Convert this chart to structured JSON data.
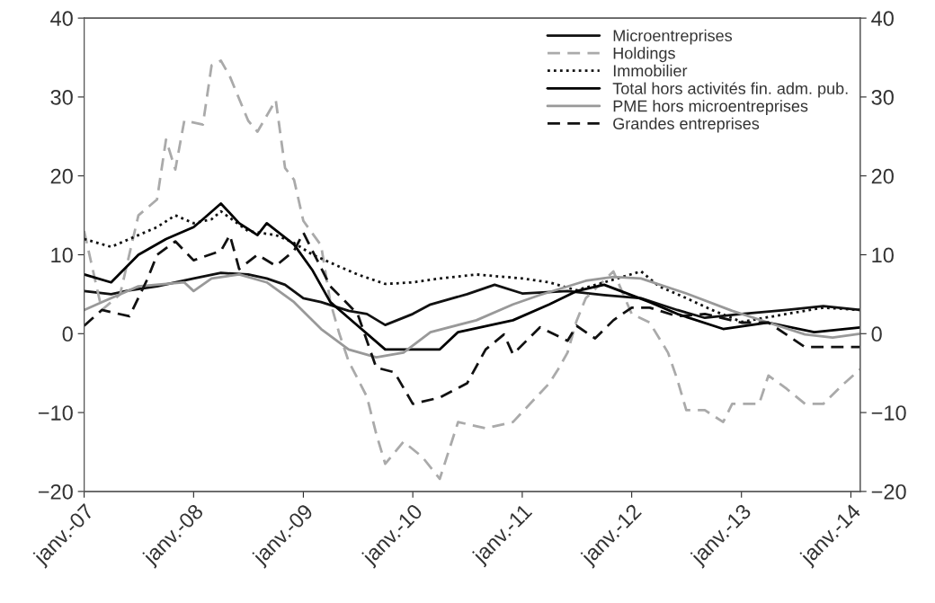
{
  "chart_data": {
    "type": "line",
    "ylim": [
      -20,
      40
    ],
    "yticks": [
      {
        "value": -20,
        "label": "−20"
      },
      {
        "value": -10,
        "label": "−10"
      },
      0,
      10,
      20,
      30,
      40
    ],
    "y2lim": [
      -20,
      40
    ],
    "y2ticks": [
      {
        "value": -20,
        "label": "−20"
      },
      {
        "value": -10,
        "label": "−10"
      },
      0,
      10,
      20,
      30,
      40
    ],
    "xlim": [
      "2007-01",
      "2014-02"
    ],
    "xticks": [
      {
        "value": "2007-01",
        "label": "janv.-07"
      },
      {
        "value": "2008-01",
        "label": "janv.-08"
      },
      {
        "value": "2009-01",
        "label": "janv.-09"
      },
      {
        "value": "2010-01",
        "label": "janv.-10"
      },
      {
        "value": "2011-01",
        "label": "janv.-11"
      },
      {
        "value": "2012-01",
        "label": "janv.-12"
      },
      {
        "value": "2013-01",
        "label": "janv.-13"
      },
      {
        "value": "2014-01",
        "label": "janv.-14"
      }
    ],
    "grid": false,
    "legend": "top right",
    "series": [
      {
        "name": "Microentreprises",
        "color": "#111111",
        "line_style": "solid",
        "x": [
          "2007-01",
          "2007-04",
          "2007-06",
          "2007-09",
          "2008-01",
          "2008-04",
          "2008-07",
          "2008-09",
          "2008-11",
          "2009-01",
          "2009-03",
          "2009-06",
          "2009-08",
          "2009-10",
          "2010-01",
          "2010-03",
          "2010-07",
          "2010-10",
          "2011-01",
          "2011-06",
          "2011-10",
          "2012-02",
          "2012-06",
          "2012-09",
          "2013-01",
          "2013-06",
          "2013-10",
          "2014-02"
        ],
        "values": [
          5.4,
          5,
          5.5,
          6,
          7,
          7.7,
          7.5,
          7,
          6.2,
          4.5,
          4,
          2.9,
          2.5,
          1.1,
          2.5,
          3.7,
          5,
          6.2,
          5.1,
          5.4,
          4.9,
          4.5,
          3,
          2,
          2.5,
          3,
          3.5,
          3
        ]
      },
      {
        "name": "Holdings",
        "color": "#aaaaaa",
        "line_style": "dashed",
        "x": [
          "2007-01",
          "2007-03",
          "2007-05",
          "2007-07",
          "2007-09",
          "2007-10",
          "2007-11",
          "2007-12",
          "2008-02",
          "2008-03",
          "2008-04",
          "2008-05",
          "2008-07",
          "2008-08",
          "2008-10",
          "2008-11",
          "2008-12",
          "2009-01",
          "2009-03",
          "2009-04",
          "2009-05",
          "2009-06",
          "2009-08",
          "2009-09",
          "2009-10",
          "2009-12",
          "2010-02",
          "2010-04",
          "2010-06",
          "2010-09",
          "2010-12",
          "2011-04",
          "2011-05",
          "2011-06",
          "2011-07",
          "2011-08",
          "2011-11",
          "2012-01",
          "2012-03",
          "2012-05",
          "2012-06",
          "2012-07",
          "2012-09",
          "2012-11",
          "2012-12",
          "2013-03",
          "2013-04",
          "2013-06",
          "2013-08",
          "2013-10",
          "2013-12",
          "2014-02"
        ],
        "values": [
          13,
          3,
          5,
          15,
          17,
          24.6,
          20.8,
          27,
          26.5,
          34,
          34.6,
          32.6,
          27,
          25.6,
          29.6,
          21,
          19.5,
          14.3,
          11.2,
          4,
          0,
          -3.5,
          -8,
          -12.7,
          -16.5,
          -13.7,
          -15.6,
          -18.4,
          -11.2,
          -12,
          -11.2,
          -6.3,
          -4.5,
          -2.4,
          1.6,
          4.5,
          7.9,
          2.5,
          1.4,
          -2.4,
          -5.8,
          -9.7,
          -9.7,
          -11.2,
          -8.9,
          -8.9,
          -5.3,
          -7,
          -8.9,
          -8.9,
          -6.6,
          -4.5
        ]
      },
      {
        "name": "Immobilier",
        "color": "#111111",
        "line_style": "dotted",
        "x": [
          "2007-01",
          "2007-04",
          "2007-09",
          "2007-11",
          "2008-01",
          "2008-03",
          "2008-04",
          "2008-07",
          "2008-10",
          "2008-12",
          "2009-02",
          "2009-05",
          "2009-07",
          "2009-10",
          "2010-01",
          "2010-04",
          "2010-08",
          "2011-01",
          "2011-04",
          "2011-07",
          "2011-10",
          "2012-02",
          "2012-04",
          "2012-07",
          "2012-10",
          "2013-01",
          "2013-06",
          "2013-10",
          "2014-02"
        ],
        "values": [
          12,
          11,
          13.5,
          15,
          14,
          14.5,
          15.5,
          13,
          12.5,
          11.5,
          10,
          8.5,
          7.5,
          6.3,
          6.5,
          7,
          7.5,
          7,
          6.5,
          5.5,
          6.5,
          7.9,
          6,
          4.5,
          2.9,
          1.5,
          2.5,
          3.3,
          3
        ]
      },
      {
        "name": "Total hors activités fin. adm. pub.",
        "color": "#000000",
        "line_style": "solid",
        "x": [
          "2007-01",
          "2007-04",
          "2007-07",
          "2007-10",
          "2008-01",
          "2008-02",
          "2008-04",
          "2008-06",
          "2008-08",
          "2008-09",
          "2008-12",
          "2009-02",
          "2009-04",
          "2009-06",
          "2009-10",
          "2010-01",
          "2010-04",
          "2010-06",
          "2010-12",
          "2011-04",
          "2011-07",
          "2011-10",
          "2012-03",
          "2012-06",
          "2012-11",
          "2013-04",
          "2013-09",
          "2014-02"
        ],
        "values": [
          7.5,
          6.5,
          10,
          12,
          13.5,
          14.5,
          16.5,
          14,
          12.5,
          14,
          11.3,
          8,
          4,
          2,
          -2,
          -2,
          -2,
          0.2,
          1.7,
          3.7,
          5.4,
          6.2,
          4,
          2.5,
          0.6,
          1.4,
          0.2,
          0.8
        ]
      },
      {
        "name": "PME hors microentreprises",
        "color": "#999999",
        "line_style": "solid",
        "x": [
          "2007-01",
          "2007-03",
          "2007-07",
          "2007-12",
          "2008-01",
          "2008-03",
          "2008-06",
          "2008-09",
          "2008-12",
          "2009-03",
          "2009-06",
          "2009-09",
          "2009-12",
          "2010-03",
          "2010-08",
          "2010-12",
          "2011-03",
          "2011-08",
          "2011-11",
          "2012-02",
          "2012-07",
          "2012-12",
          "2013-04",
          "2013-08",
          "2013-11",
          "2014-02"
        ],
        "values": [
          3,
          4,
          6,
          6.5,
          5.4,
          7,
          7.5,
          6.5,
          4,
          0.6,
          -2,
          -3,
          -2.4,
          0.2,
          1.7,
          3.7,
          4.9,
          6.7,
          7.2,
          7,
          5.1,
          2.9,
          1.4,
          -0.1,
          -0.5,
          0
        ]
      },
      {
        "name": "Grandes entreprises",
        "color": "#111111",
        "line_style": "dashed",
        "x": [
          "2007-01",
          "2007-03",
          "2007-06",
          "2007-08",
          "2007-09",
          "2007-11",
          "2008-01",
          "2008-04",
          "2008-05",
          "2008-06",
          "2008-08",
          "2008-10",
          "2008-12",
          "2009-01",
          "2009-04",
          "2009-07",
          "2009-09",
          "2009-11",
          "2010-01",
          "2010-04",
          "2010-07",
          "2010-09",
          "2010-11",
          "2010-12",
          "2011-03",
          "2011-06",
          "2011-07",
          "2011-09",
          "2011-11",
          "2012-01",
          "2012-03",
          "2012-06",
          "2012-09",
          "2013-01",
          "2013-04",
          "2013-08",
          "2014-02"
        ],
        "values": [
          1,
          3,
          2.2,
          7,
          10,
          11.7,
          9.3,
          10.5,
          12.5,
          8.2,
          10,
          8.6,
          10.5,
          12.8,
          6,
          2.5,
          -4.3,
          -4.9,
          -8.9,
          -8.1,
          -6.3,
          -2,
          -0.1,
          -2.6,
          0.8,
          -0.9,
          1,
          -0.6,
          1.7,
          3.3,
          3.3,
          2.2,
          2.5,
          1.4,
          1.4,
          -1.7,
          -1.7
        ]
      }
    ]
  }
}
